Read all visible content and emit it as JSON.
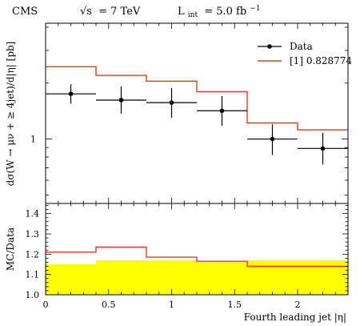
{
  "header": {
    "experiment": "CMS",
    "energy_prefix": "√s",
    "energy_value": "= 7 TeV",
    "lumi_prefix": "L",
    "lumi_sub": "int",
    "lumi_value": "= 5.0 fb",
    "lumi_exp": "−1"
  },
  "chart_data": [
    {
      "type": "line",
      "panel": "main",
      "ylabel": "dσ(W → μν + ≥ 4jet)/d|η| [pb]",
      "yscale": "log",
      "ylim": [
        0.45,
        4.2
      ],
      "xlim": [
        0,
        2.4
      ],
      "y_tick_labels": [
        {
          "value": 1,
          "label": "1"
        }
      ],
      "legend_position": "top-right",
      "legend": [
        "Data",
        "[1] 0.828774"
      ],
      "bin_edges": [
        0,
        0.4,
        0.8,
        1.2,
        1.6,
        2.0,
        2.4
      ],
      "series": [
        {
          "name": "Data",
          "style": "points-with-errors",
          "color": "#000000",
          "x": [
            0.2,
            0.6,
            1.0,
            1.4,
            1.8,
            2.2
          ],
          "y": [
            1.75,
            1.62,
            1.57,
            1.42,
            1.0,
            0.89
          ],
          "yerr_low": [
            0.2,
            0.25,
            0.27,
            0.24,
            0.18,
            0.16
          ],
          "yerr_high": [
            0.22,
            0.3,
            0.31,
            0.28,
            0.2,
            0.19
          ]
        },
        {
          "name": "[1] 0.828774",
          "style": "step",
          "color": "#e8391f",
          "values": [
            2.45,
            2.2,
            2.05,
            1.8,
            1.22,
            1.12
          ]
        }
      ]
    },
    {
      "type": "area",
      "panel": "ratio",
      "ylabel": "MC/Data",
      "xlabel": "Fourth leading jet |η|",
      "ylim": [
        1.0,
        1.45
      ],
      "xlim": [
        0,
        2.4
      ],
      "x_tick_labels": [
        "0",
        "0.5",
        "1",
        "1.5",
        "2"
      ],
      "x_ticks": [
        0,
        0.5,
        1.0,
        1.5,
        2.0
      ],
      "y_tick_labels": [
        "1.0",
        "1.1",
        "1.2",
        "1.3",
        "1.4"
      ],
      "y_ticks": [
        1.0,
        1.1,
        1.2,
        1.3,
        1.4
      ],
      "bin_edges": [
        0,
        0.4,
        0.8,
        1.2,
        1.6,
        2.0,
        2.4
      ],
      "series": [
        {
          "name": "Data uncertainty band",
          "style": "band",
          "color": "#ffff00",
          "values": [
            1.15,
            1.17,
            1.17,
            1.16,
            1.17,
            1.17
          ]
        },
        {
          "name": "[1] 0.828774",
          "style": "step",
          "color": "#e8391f",
          "values": [
            1.21,
            1.235,
            1.185,
            1.165,
            1.14,
            1.14
          ]
        }
      ]
    }
  ]
}
